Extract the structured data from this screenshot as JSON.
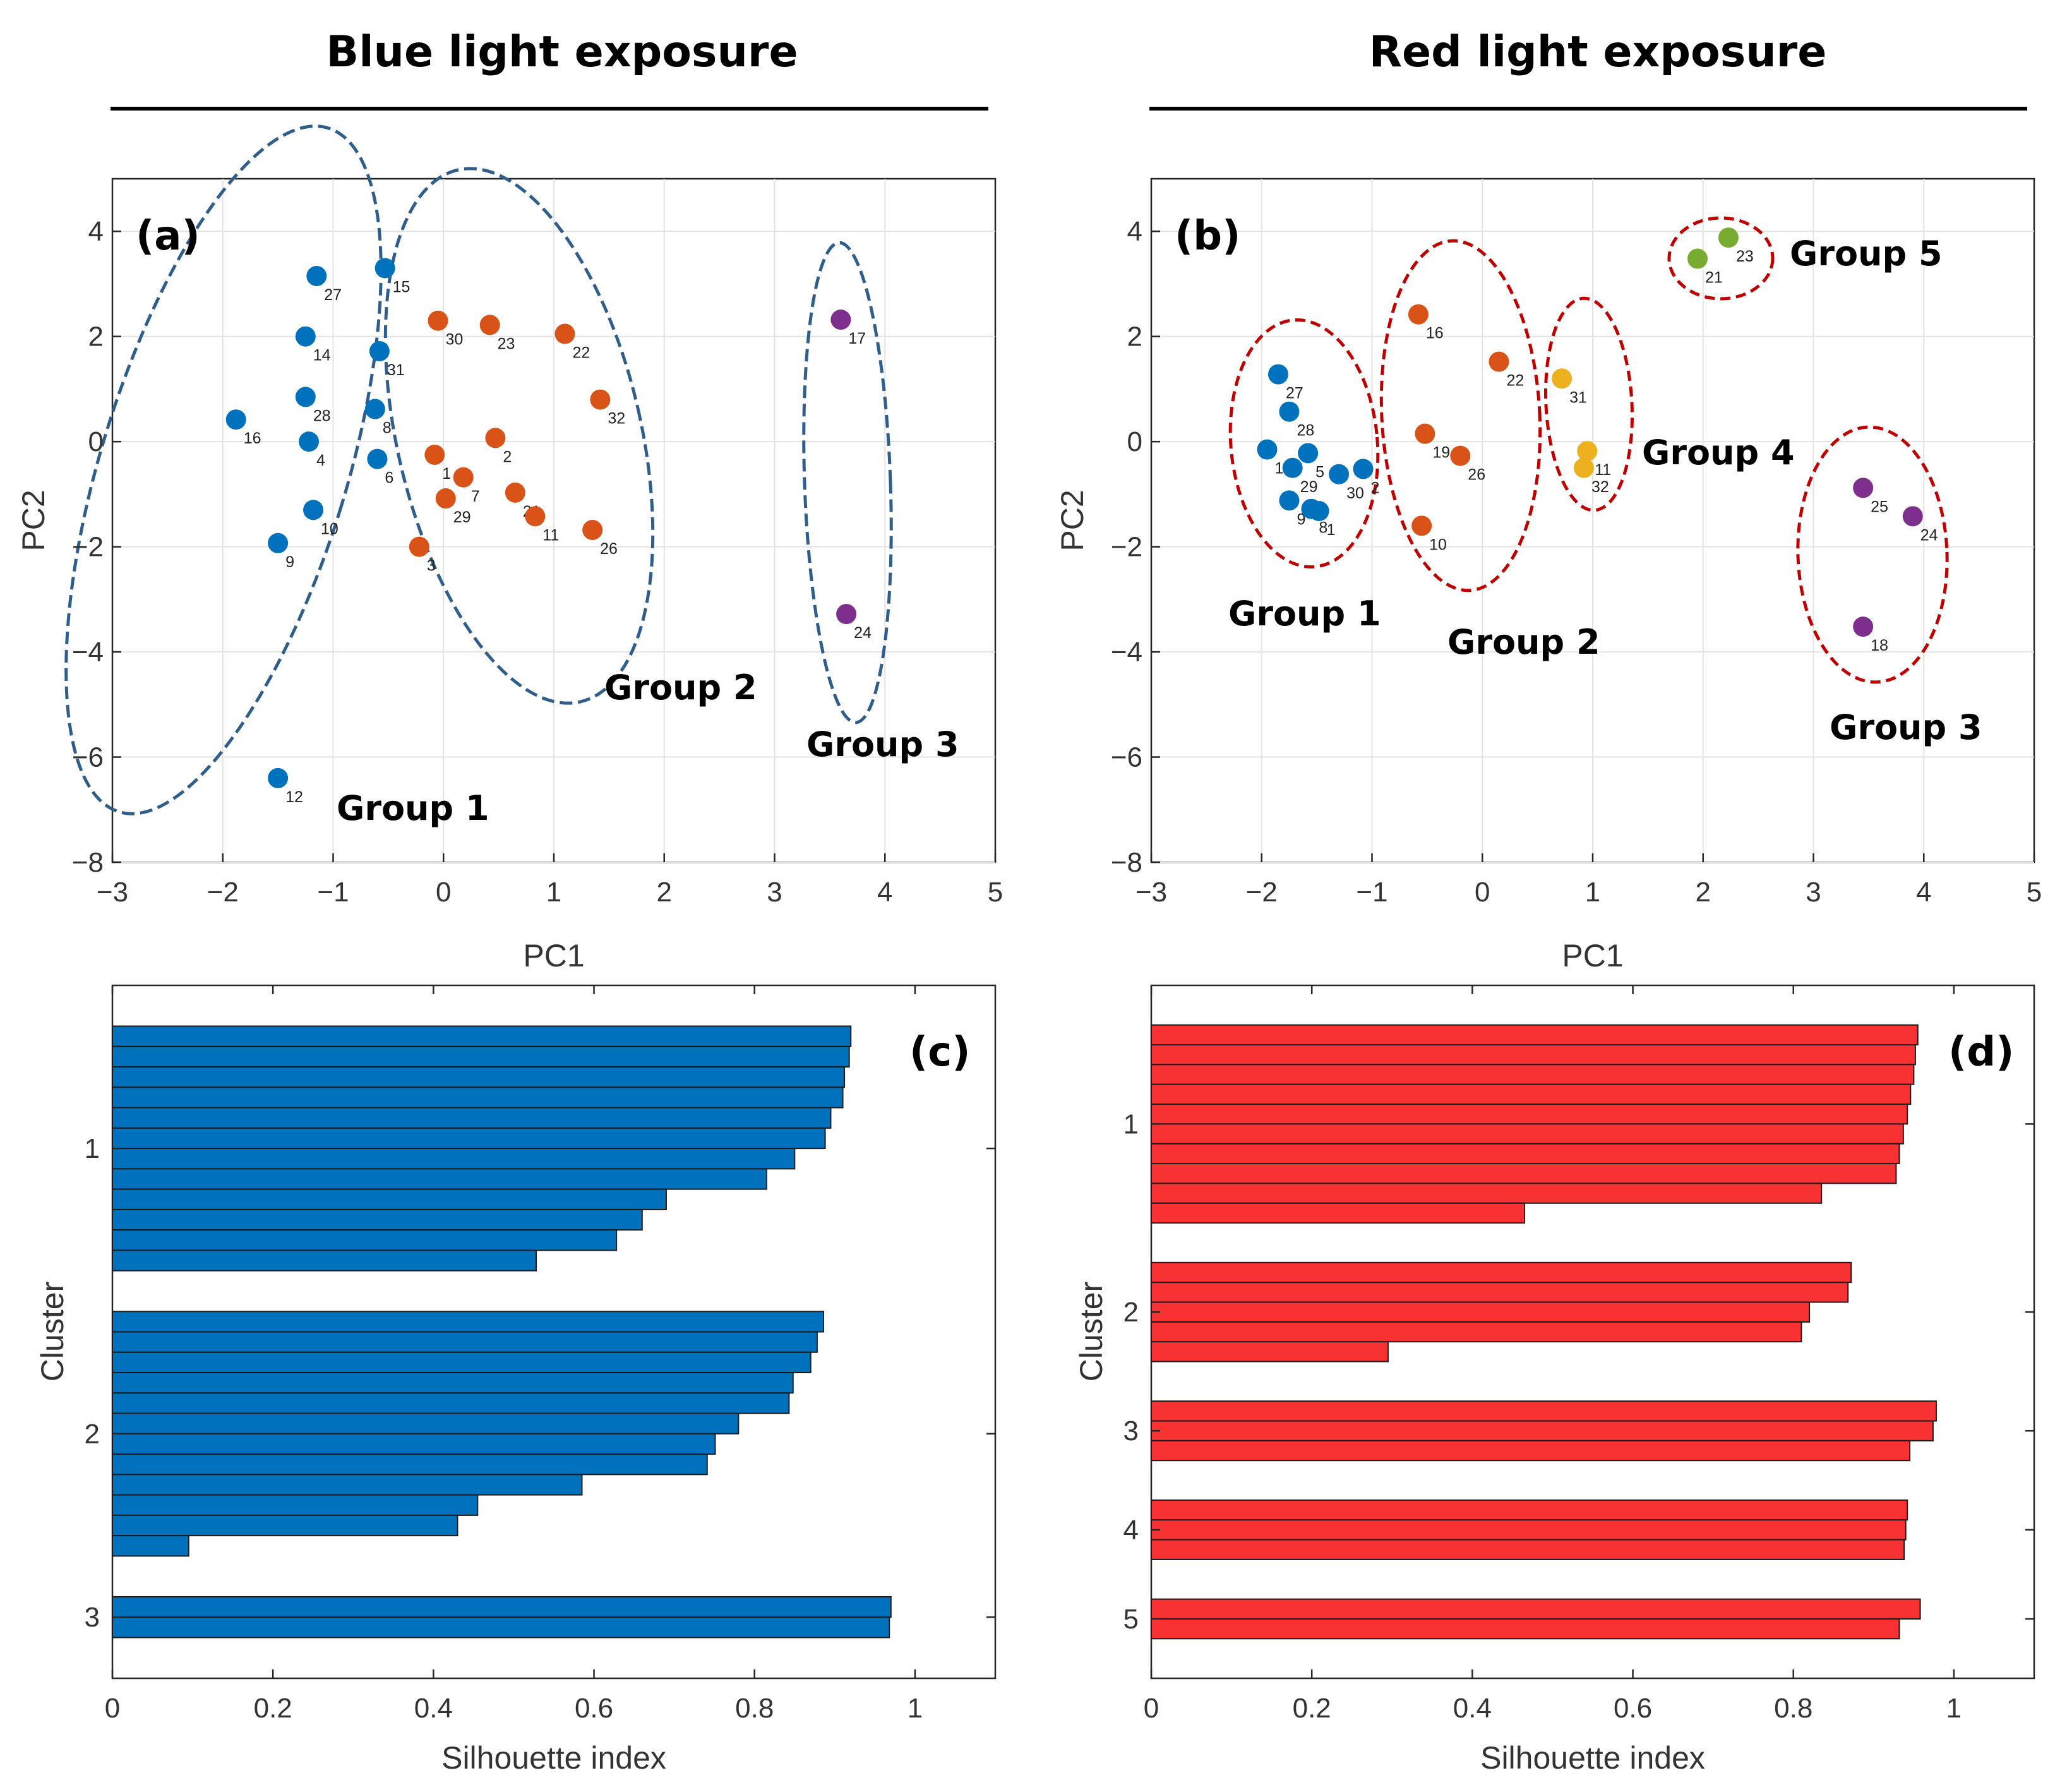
{
  "figure": {
    "left_title": "Blue light exposure",
    "right_title": "Red light exposure"
  },
  "chart_data": [
    {
      "id": "a",
      "type": "scatter",
      "panel_label": "(a)",
      "xlabel": "PC1",
      "ylabel": "PC2",
      "xlim": [
        -3,
        5
      ],
      "ylim": [
        -8,
        5
      ],
      "xticks": [
        "−3",
        "−2",
        "−1",
        "0",
        "1",
        "2",
        "3",
        "4",
        "5"
      ],
      "yticks": [
        "4",
        "2",
        "0",
        "−2",
        "−4",
        "−6",
        "−8"
      ],
      "grid": true,
      "series": [
        {
          "name": "Group 1",
          "color": "#0072BD",
          "points": [
            {
              "id": "27",
              "x": -1.15,
              "y": 3.15
            },
            {
              "id": "15",
              "x": -0.53,
              "y": 3.3
            },
            {
              "id": "14",
              "x": -1.25,
              "y": 2.0
            },
            {
              "id": "31",
              "x": -0.58,
              "y": 1.72
            },
            {
              "id": "28",
              "x": -1.25,
              "y": 0.85
            },
            {
              "id": "8",
              "x": -0.62,
              "y": 0.62
            },
            {
              "id": "16",
              "x": -1.88,
              "y": 0.42
            },
            {
              "id": "4",
              "x": -1.22,
              "y": 0.0
            },
            {
              "id": "6",
              "x": -0.6,
              "y": -0.33
            },
            {
              "id": "10",
              "x": -1.18,
              "y": -1.3
            },
            {
              "id": "9",
              "x": -1.5,
              "y": -1.93
            },
            {
              "id": "12",
              "x": -1.5,
              "y": -6.4
            }
          ]
        },
        {
          "name": "Group 2",
          "color": "#D95319",
          "points": [
            {
              "id": "30",
              "x": -0.05,
              "y": 2.3
            },
            {
              "id": "23",
              "x": 0.42,
              "y": 2.22
            },
            {
              "id": "22",
              "x": 1.1,
              "y": 2.05
            },
            {
              "id": "32",
              "x": 1.42,
              "y": 0.8
            },
            {
              "id": "2",
              "x": 0.47,
              "y": 0.07
            },
            {
              "id": "1",
              "x": -0.08,
              "y": -0.25
            },
            {
              "id": "7",
              "x": 0.18,
              "y": -0.68
            },
            {
              "id": "29",
              "x": 0.02,
              "y": -1.08
            },
            {
              "id": "21",
              "x": 0.65,
              "y": -0.97
            },
            {
              "id": "11",
              "x": 0.83,
              "y": -1.42
            },
            {
              "id": "26",
              "x": 1.35,
              "y": -1.68
            },
            {
              "id": "3",
              "x": -0.22,
              "y": -2.0
            }
          ]
        },
        {
          "name": "Group 3",
          "color": "#7E2F8E",
          "points": [
            {
              "id": "17",
              "x": 3.6,
              "y": 2.32
            },
            {
              "id": "24",
              "x": 3.65,
              "y": -3.28
            }
          ]
        }
      ],
      "group_labels": [
        "Group 1",
        "Group 2",
        "Group 3"
      ]
    },
    {
      "id": "b",
      "type": "scatter",
      "panel_label": "(b)",
      "xlabel": "PC1",
      "ylabel": "PC2",
      "xlim": [
        -3,
        5
      ],
      "ylim": [
        -8,
        5
      ],
      "xticks": [
        "−3",
        "−2",
        "−1",
        "0",
        "1",
        "2",
        "3",
        "4",
        "5"
      ],
      "yticks": [
        "4",
        "2",
        "0",
        "−2",
        "−4",
        "−6",
        "−8"
      ],
      "grid": true,
      "series": [
        {
          "name": "Group 1",
          "color": "#0072BD",
          "points": [
            {
              "id": "27",
              "x": -1.85,
              "y": 1.28
            },
            {
              "id": "28",
              "x": -1.75,
              "y": 0.57
            },
            {
              "id": "12",
              "x": -1.95,
              "y": -0.15
            },
            {
              "id": "5",
              "x": -1.58,
              "y": -0.22
            },
            {
              "id": "29",
              "x": -1.72,
              "y": -0.5
            },
            {
              "id": "30",
              "x": -1.3,
              "y": -0.62
            },
            {
              "id": "2",
              "x": -1.08,
              "y": -0.52
            },
            {
              "id": "9",
              "x": -1.75,
              "y": -1.12
            },
            {
              "id": "8",
              "x": -1.55,
              "y": -1.28
            },
            {
              "id": "1",
              "x": -1.48,
              "y": -1.32
            }
          ]
        },
        {
          "name": "Group 2",
          "color": "#D95319",
          "points": [
            {
              "id": "16",
              "x": -0.58,
              "y": 2.42
            },
            {
              "id": "22",
              "x": 0.15,
              "y": 1.52
            },
            {
              "id": "19",
              "x": -0.52,
              "y": 0.15
            },
            {
              "id": "26",
              "x": -0.2,
              "y": -0.27
            },
            {
              "id": "10",
              "x": -0.55,
              "y": -1.6
            }
          ]
        },
        {
          "name": "Group 3",
          "color": "#7E2F8E",
          "points": [
            {
              "id": "25",
              "x": 3.45,
              "y": -0.88
            },
            {
              "id": "24",
              "x": 3.9,
              "y": -1.42
            },
            {
              "id": "18",
              "x": 3.45,
              "y": -3.52
            }
          ]
        },
        {
          "name": "Group 4",
          "color": "#EDB120",
          "points": [
            {
              "id": "31",
              "x": 0.72,
              "y": 1.2
            },
            {
              "id": "11",
              "x": 0.95,
              "y": -0.18
            },
            {
              "id": "32",
              "x": 0.92,
              "y": -0.5
            }
          ]
        },
        {
          "name": "Group 5",
          "color": "#77AC30",
          "points": [
            {
              "id": "21",
              "x": 1.95,
              "y": 3.48
            },
            {
              "id": "23",
              "x": 2.23,
              "y": 3.88
            }
          ]
        }
      ],
      "group_labels": [
        "Group 1",
        "Group 2",
        "Group 3",
        "Group 4",
        "Group 5"
      ]
    },
    {
      "id": "c",
      "type": "bar",
      "orientation": "horizontal",
      "panel_label": "(c)",
      "xlabel": "Silhouette index",
      "ylabel": "Cluster",
      "xlim": [
        0,
        1.1
      ],
      "xticks": [
        "0",
        "0.2",
        "0.4",
        "0.6",
        "0.8",
        "1"
      ],
      "color": "#0072BD",
      "clusters": [
        {
          "name": "1",
          "values": [
            0.92,
            0.918,
            0.912,
            0.91,
            0.895,
            0.888,
            0.85,
            0.815,
            0.69,
            0.66,
            0.628,
            0.528
          ]
        },
        {
          "name": "2",
          "values": [
            0.886,
            0.878,
            0.87,
            0.848,
            0.843,
            0.78,
            0.751,
            0.741,
            0.585,
            0.455,
            0.43,
            0.095
          ]
        },
        {
          "name": "3",
          "values": [
            0.97,
            0.968
          ]
        }
      ]
    },
    {
      "id": "d",
      "type": "bar",
      "orientation": "horizontal",
      "panel_label": "(d)",
      "xlabel": "Silhouette index",
      "ylabel": "Cluster",
      "xlim": [
        0,
        1.1
      ],
      "xticks": [
        "0",
        "0.2",
        "0.4",
        "0.6",
        "0.8",
        "1"
      ],
      "color": "#F83232",
      "clusters": [
        {
          "name": "1",
          "values": [
            0.955,
            0.952,
            0.95,
            0.946,
            0.942,
            0.937,
            0.932,
            0.928,
            0.835,
            0.465
          ]
        },
        {
          "name": "2",
          "values": [
            0.872,
            0.868,
            0.82,
            0.81,
            0.295
          ]
        },
        {
          "name": "3",
          "values": [
            0.978,
            0.974,
            0.945
          ]
        },
        {
          "name": "4",
          "values": [
            0.942,
            0.94,
            0.938
          ]
        },
        {
          "name": "5",
          "values": [
            0.958,
            0.932
          ]
        }
      ]
    }
  ]
}
